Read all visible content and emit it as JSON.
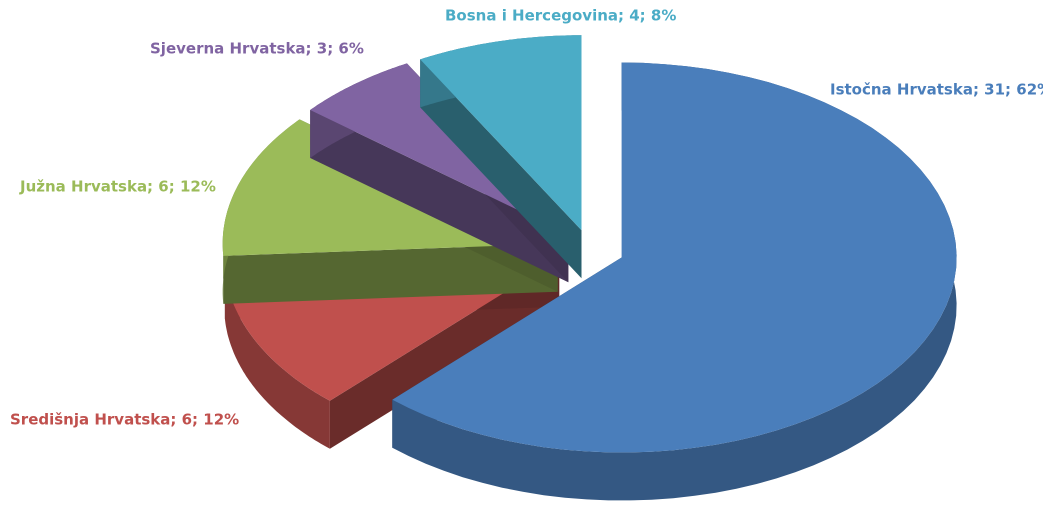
{
  "chart_data": {
    "type": "pie",
    "three_d": true,
    "exploded": true,
    "value_labels": [
      "Istočna Hrvatska; 31; 62%",
      "Središnja Hrvatska; 6; 12%",
      "Južna Hrvatska; 6; 12%",
      "Sjeverna Hrvatska; 3; 6%",
      "Bosna i Hercegovina; 4; 8%"
    ],
    "values": [
      31,
      6,
      6,
      3,
      4
    ],
    "colors": [
      "#4a7ebb",
      "#c0504d",
      "#9bbb59",
      "#8064a2",
      "#4bacc6"
    ]
  }
}
